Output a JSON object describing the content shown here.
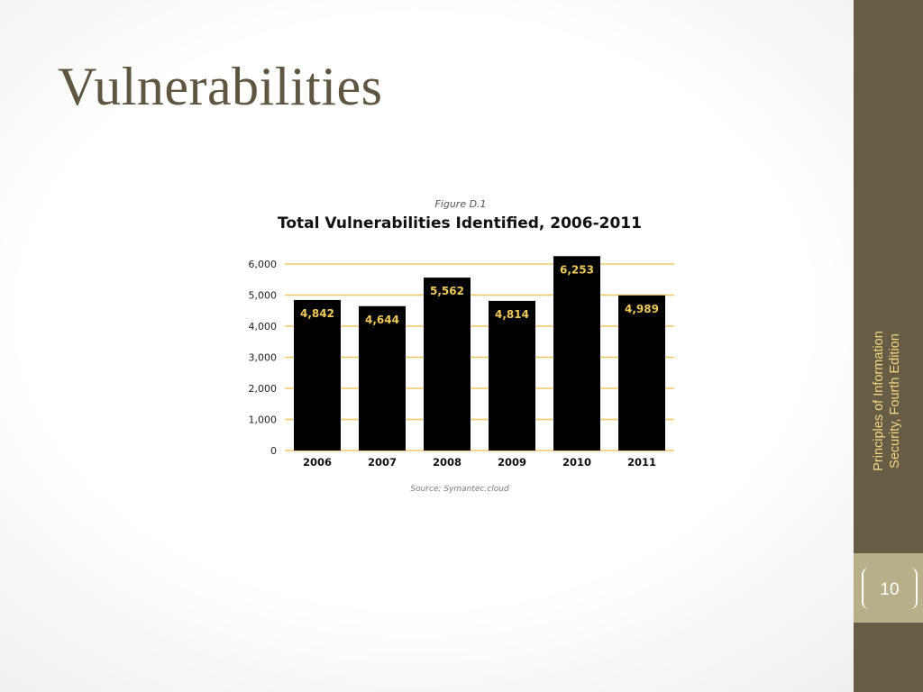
{
  "slide": {
    "title": "Vulnerabilities",
    "sidebar_line1": "Principles of Information",
    "sidebar_line2": "Security, Fourth Edition",
    "page_number": "10"
  },
  "colors": {
    "sidebar": "#675d47",
    "accent_text": "#f3d682",
    "bar": "#000000",
    "bar_label": "#f0c95a",
    "gridline": "#f1c766",
    "title_color": "#5e5640"
  },
  "chart_data": {
    "type": "bar",
    "figure_label": "Figure D.1",
    "title": "Total Vulnerabilities Identified, 2006-2011",
    "source": "Source: Symantec.cloud",
    "categories": [
      "2006",
      "2007",
      "2008",
      "2009",
      "2010",
      "2011"
    ],
    "values": [
      4842,
      4644,
      5562,
      4814,
      6253,
      4989
    ],
    "value_labels": [
      "4,842",
      "4,644",
      "5,562",
      "4,814",
      "6,253",
      "4,989"
    ],
    "yticks": [
      0,
      1000,
      2000,
      3000,
      4000,
      5000,
      6000
    ],
    "ytick_labels": [
      "0",
      "1,000",
      "2,000",
      "3,000",
      "4,000",
      "5,000",
      "6,000"
    ],
    "ylim": [
      0,
      6000
    ],
    "grid": true,
    "xlabel": "",
    "ylabel": ""
  }
}
